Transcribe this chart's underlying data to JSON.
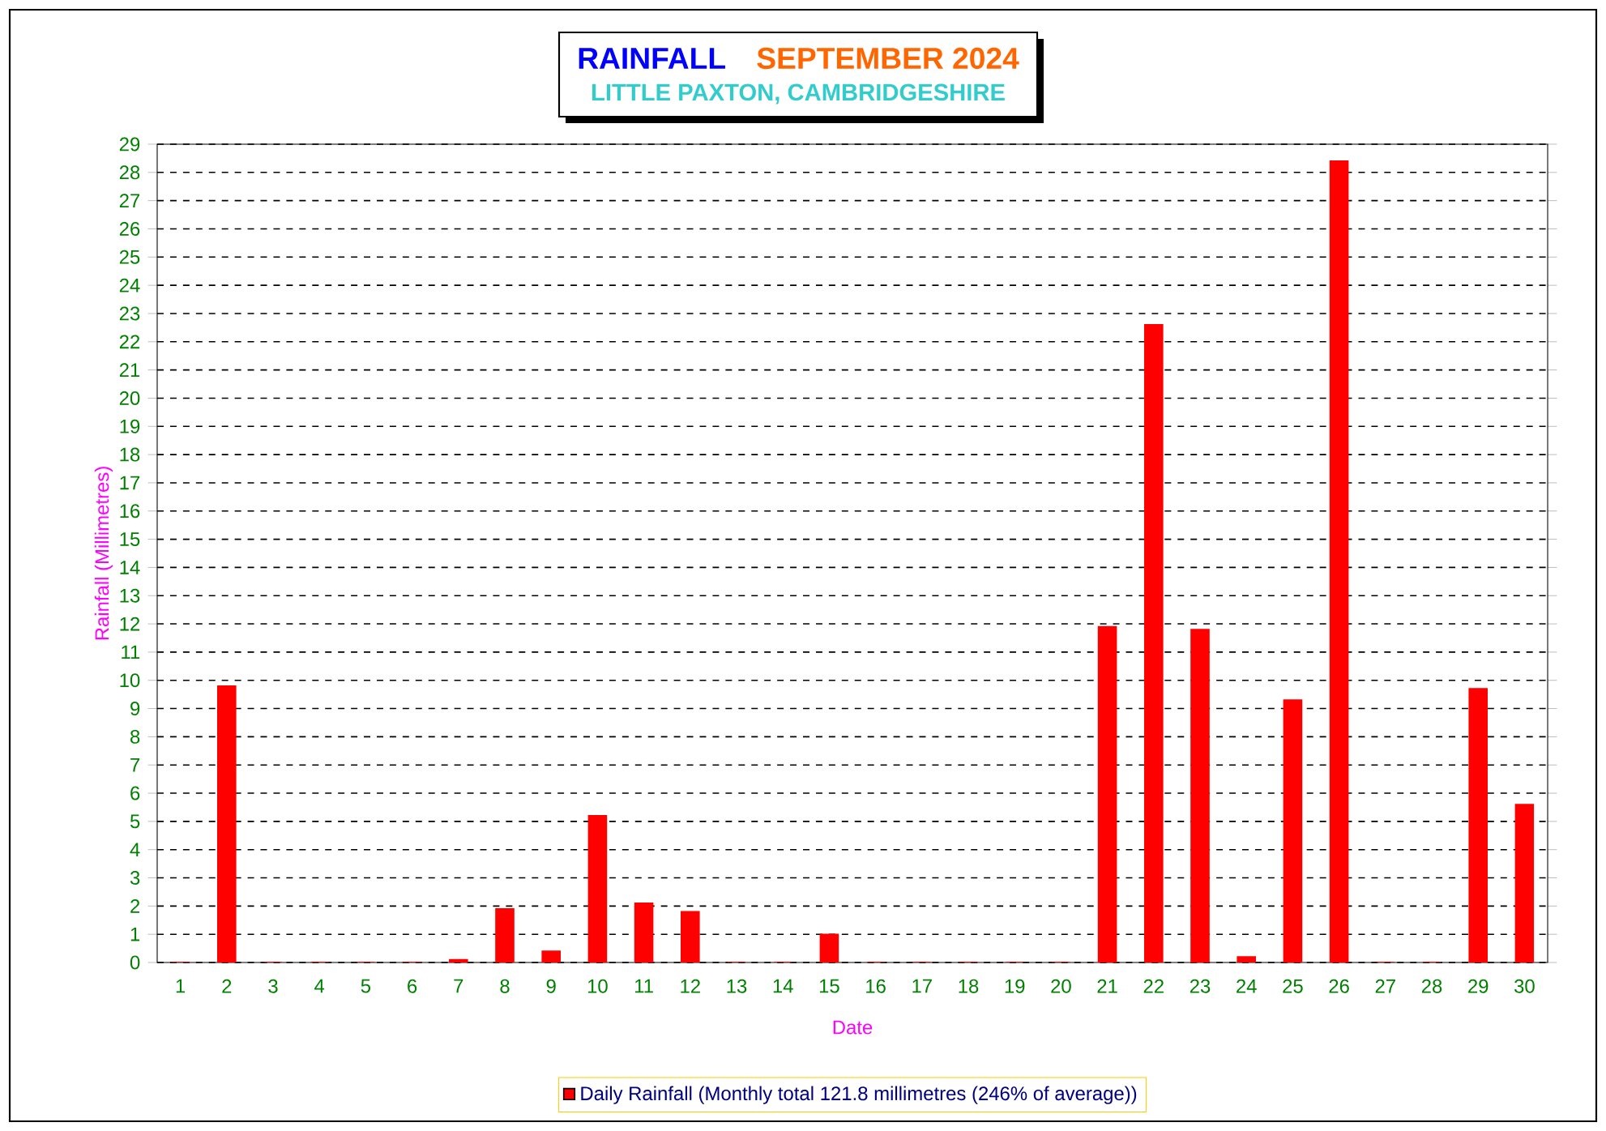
{
  "chart_data": {
    "type": "bar",
    "title": "RAINFALL",
    "subtitle": "LITTLE PAXTON, CAMBRIDGESHIRE",
    "annotations": [
      "SEPTEMBER 2024"
    ],
    "xlabel": "Date",
    "ylabel": "Rainfall  (Millimetres)",
    "categories": [
      "1",
      "2",
      "3",
      "4",
      "5",
      "6",
      "7",
      "8",
      "9",
      "10",
      "11",
      "12",
      "13",
      "14",
      "15",
      "16",
      "17",
      "18",
      "19",
      "20",
      "21",
      "22",
      "23",
      "24",
      "25",
      "26",
      "27",
      "28",
      "29",
      "30"
    ],
    "series": [
      {
        "name": "Daily Rainfall (Monthly total 121.8 millimetres (246% of average))",
        "color": "#ff0000",
        "values": [
          0,
          9.8,
          0,
          0,
          0,
          0,
          0.1,
          1.9,
          0.4,
          5.2,
          2.1,
          1.8,
          0,
          0,
          1.0,
          0,
          0,
          0,
          0,
          0,
          11.9,
          22.6,
          11.8,
          0.2,
          9.3,
          28.4,
          0,
          0,
          9.7,
          5.6
        ]
      }
    ],
    "ylim": [
      0,
      29
    ],
    "yticks": [
      0,
      1,
      2,
      3,
      4,
      5,
      6,
      7,
      8,
      9,
      10,
      11,
      12,
      13,
      14,
      15,
      16,
      17,
      18,
      19,
      20,
      21,
      22,
      23,
      24,
      25,
      26,
      27,
      28,
      29
    ],
    "grid": "y",
    "legend": "bottom"
  }
}
